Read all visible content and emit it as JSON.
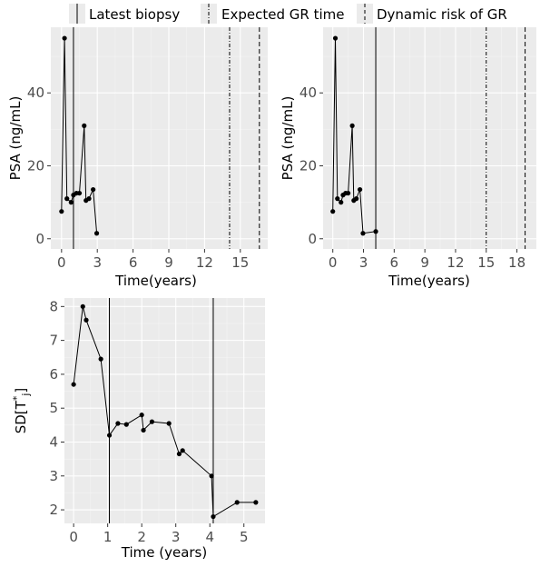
{
  "legend": {
    "items": [
      {
        "label": "Latest biopsy",
        "dash": "solid"
      },
      {
        "label": "Expected GR time",
        "dash": "dashdot"
      },
      {
        "label": "Dynamic risk of GR",
        "dash": "dashed"
      }
    ]
  },
  "colors": {
    "panel_bg": "#ebebeb",
    "grid_major": "#ffffff",
    "series": "#000000",
    "tick_text": "#4d4d4d"
  },
  "chart_data": [
    {
      "type": "line",
      "xlabel": "Time(years)",
      "ylabel": "PSA (ng/mL)",
      "xlim": [
        -0.9,
        17.3
      ],
      "ylim": [
        -2.8,
        58
      ],
      "xticks": [
        0,
        3,
        6,
        9,
        12,
        15
      ],
      "xtick_labels": [
        "0",
        "3",
        "6",
        "9",
        "12",
        "15"
      ],
      "yticks": [
        0,
        20,
        40
      ],
      "ytick_labels": [
        "0",
        "20",
        "40"
      ],
      "grid": true,
      "series": [
        {
          "x": [
            0.0,
            0.25,
            0.45,
            0.8,
            1.0,
            1.25,
            1.5,
            1.9,
            2.05,
            2.3,
            2.65,
            2.95
          ],
          "y": [
            7.5,
            55,
            11,
            10,
            12,
            12.5,
            12.5,
            31,
            10.5,
            11,
            13.5,
            1.5
          ]
        }
      ],
      "vlines": [
        {
          "x": 1.0,
          "kind": "Latest biopsy"
        },
        {
          "x": 14.1,
          "kind": "Expected GR time"
        },
        {
          "x": 16.6,
          "kind": "Dynamic risk of GR"
        }
      ]
    },
    {
      "type": "line",
      "xlabel": "Time(years)",
      "ylabel": "PSA (ng/mL)",
      "xlim": [
        -0.95,
        19.9
      ],
      "ylim": [
        -2.8,
        58
      ],
      "xticks": [
        0,
        3,
        6,
        9,
        12,
        15,
        18
      ],
      "xtick_labels": [
        "0",
        "3",
        "6",
        "9",
        "12",
        "15",
        "18"
      ],
      "yticks": [
        0,
        20,
        40
      ],
      "ytick_labels": [
        "0",
        "20",
        "40"
      ],
      "grid": true,
      "series": [
        {
          "x": [
            0.0,
            0.25,
            0.45,
            0.8,
            1.0,
            1.25,
            1.5,
            1.9,
            2.05,
            2.3,
            2.65,
            2.95,
            4.2
          ],
          "y": [
            7.5,
            55,
            11,
            10,
            12,
            12.5,
            12.5,
            31,
            10.5,
            11,
            13.5,
            1.5,
            2.0
          ]
        }
      ],
      "vlines": [
        {
          "x": 4.2,
          "kind": "Latest biopsy"
        },
        {
          "x": 15.0,
          "kind": "Expected GR time"
        },
        {
          "x": 18.8,
          "kind": "Dynamic risk of GR"
        }
      ]
    },
    {
      "type": "line",
      "xlabel": "Time (years)",
      "ylabel": "SD[T*j]",
      "xlim": [
        -0.27,
        5.62
      ],
      "ylim": [
        1.6,
        8.25
      ],
      "xticks": [
        0,
        1,
        2,
        3,
        4,
        5
      ],
      "xtick_labels": [
        "0",
        "1",
        "2",
        "3",
        "4",
        "5"
      ],
      "yticks": [
        2,
        3,
        4,
        5,
        6,
        7,
        8
      ],
      "ytick_labels": [
        "2",
        "3",
        "4",
        "5",
        "6",
        "7",
        "8"
      ],
      "grid": true,
      "series": [
        {
          "x": [
            0.0,
            0.27,
            0.37,
            0.8,
            1.05,
            1.3,
            1.55,
            2.0,
            2.05,
            2.3,
            2.8,
            3.1,
            3.2,
            4.05,
            4.1,
            4.8,
            5.35
          ],
          "y": [
            5.7,
            8.0,
            7.6,
            6.45,
            4.2,
            4.55,
            4.52,
            4.8,
            4.35,
            4.6,
            4.55,
            3.65,
            3.75,
            3.0,
            1.8,
            2.22,
            2.22
          ]
        }
      ],
      "vlines": [
        {
          "x": 1.05,
          "kind": "Latest biopsy"
        },
        {
          "x": 4.1,
          "kind": "Latest biopsy"
        }
      ]
    }
  ]
}
